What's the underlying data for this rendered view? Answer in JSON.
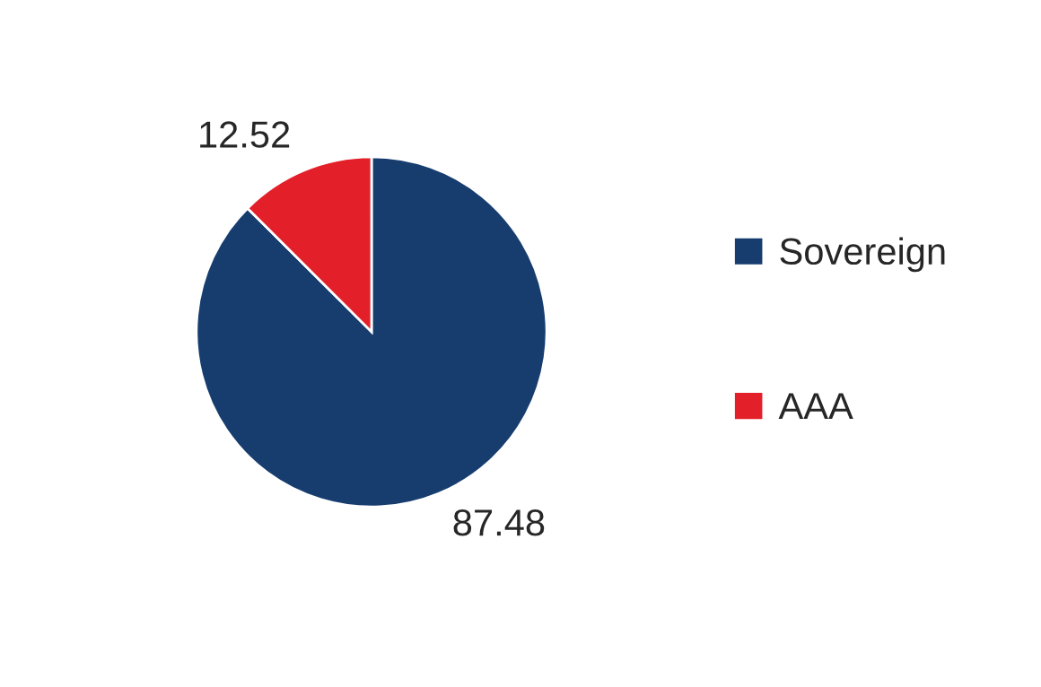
{
  "chart_data": {
    "type": "pie",
    "categories": [
      "Sovereign",
      "AAA"
    ],
    "values": [
      87.48,
      12.52
    ],
    "colors": [
      "#173d6f",
      "#e3202a"
    ],
    "data_labels": true,
    "legend": "right"
  }
}
